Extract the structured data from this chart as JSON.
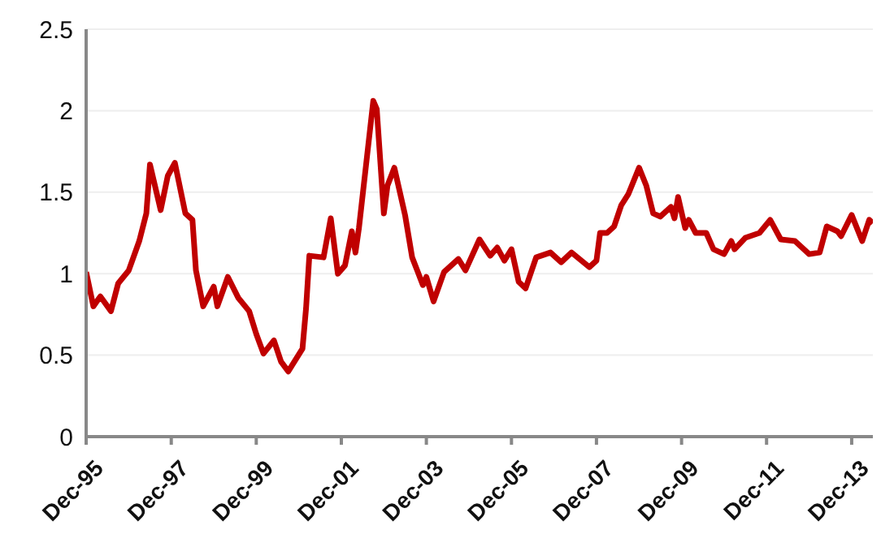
{
  "chart_data": {
    "type": "line",
    "x": [
      "1995-12",
      "1996-02",
      "1996-04",
      "1996-07",
      "1996-09",
      "1996-12",
      "1997-03",
      "1997-05",
      "1997-06",
      "1997-09",
      "1997-11",
      "1998-01",
      "1998-04",
      "1998-06",
      "1998-07",
      "1998-09",
      "1998-12",
      "1999-01",
      "1999-04",
      "1999-07",
      "1999-10",
      "1999-12",
      "2000-02",
      "2000-05",
      "2000-07",
      "2000-09",
      "2001-01",
      "2001-02",
      "2001-03",
      "2001-07",
      "2001-09",
      "2001-11",
      "2002-01",
      "2002-03",
      "2002-04",
      "2002-05",
      "2002-09",
      "2002-10",
      "2002-12",
      "2003-01",
      "2003-03",
      "2003-06",
      "2003-08",
      "2003-11",
      "2003-12",
      "2004-02",
      "2004-05",
      "2004-09",
      "2004-11",
      "2005-03",
      "2005-06",
      "2005-08",
      "2005-10",
      "2005-12",
      "2006-02",
      "2006-04",
      "2006-07",
      "2006-11",
      "2007-02",
      "2007-05",
      "2007-10",
      "2007-12",
      "2008-01",
      "2008-03",
      "2008-05",
      "2008-07",
      "2008-09",
      "2008-12",
      "2009-02",
      "2009-04",
      "2009-06",
      "2009-09",
      "2009-10",
      "2009-11",
      "2010-01",
      "2010-02",
      "2010-04",
      "2010-07",
      "2010-09",
      "2010-12",
      "2011-02",
      "2011-03",
      "2011-06",
      "2011-10",
      "2012-01",
      "2012-04",
      "2012-08",
      "2012-12",
      "2013-03",
      "2013-05",
      "2013-08",
      "2013-09",
      "2013-12",
      "2014-03",
      "2014-05",
      "2014-06"
    ],
    "series": [
      {
        "color": "#c00000",
        "values": [
          1.01,
          0.8,
          0.86,
          0.77,
          0.94,
          1.02,
          1.2,
          1.37,
          1.67,
          1.39,
          1.6,
          1.68,
          1.37,
          1.33,
          1.02,
          0.8,
          0.92,
          0.8,
          0.98,
          0.85,
          0.77,
          0.63,
          0.51,
          0.59,
          0.46,
          0.4,
          0.54,
          0.79,
          1.11,
          1.1,
          1.34,
          1.0,
          1.05,
          1.26,
          1.13,
          1.28,
          2.06,
          2.01,
          1.37,
          1.54,
          1.65,
          1.36,
          1.1,
          0.93,
          0.98,
          0.83,
          1.01,
          1.09,
          1.02,
          1.21,
          1.11,
          1.16,
          1.08,
          1.15,
          0.95,
          0.91,
          1.1,
          1.13,
          1.07,
          1.13,
          1.04,
          1.08,
          1.25,
          1.25,
          1.29,
          1.42,
          1.49,
          1.65,
          1.54,
          1.37,
          1.35,
          1.41,
          1.34,
          1.47,
          1.28,
          1.33,
          1.25,
          1.25,
          1.15,
          1.12,
          1.2,
          1.15,
          1.22,
          1.25,
          1.33,
          1.21,
          1.2,
          1.12,
          1.13,
          1.29,
          1.26,
          1.23,
          1.36,
          1.2,
          1.33,
          1.31
        ]
      }
    ],
    "xlim": [
      "1995-12",
      "2014-06"
    ],
    "xticks": [
      {
        "value": "1995-12",
        "label": "Dec-95"
      },
      {
        "value": "1997-12",
        "label": "Dec-97"
      },
      {
        "value": "1999-12",
        "label": "Dec-99"
      },
      {
        "value": "2001-12",
        "label": "Dec-01"
      },
      {
        "value": "2003-12",
        "label": "Dec-03"
      },
      {
        "value": "2005-12",
        "label": "Dec-05"
      },
      {
        "value": "2007-12",
        "label": "Dec-07"
      },
      {
        "value": "2009-12",
        "label": "Dec-09"
      },
      {
        "value": "2011-12",
        "label": "Dec-11"
      },
      {
        "value": "2013-12",
        "label": "Dec-13"
      }
    ],
    "ylim": [
      0,
      2.5
    ],
    "yticks": [
      0,
      0.5,
      1,
      1.5,
      2,
      2.5
    ],
    "grid": "y",
    "legend": false,
    "marker": "none",
    "line_style": "solid"
  }
}
